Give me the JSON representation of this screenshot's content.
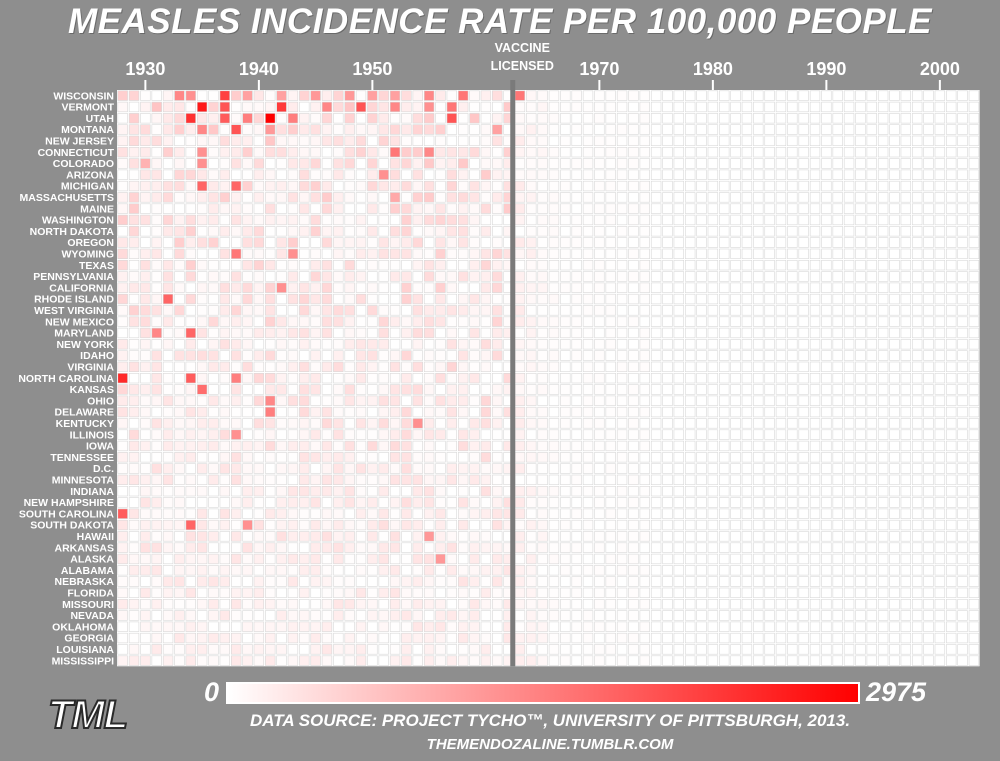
{
  "chart_data": {
    "type": "heatmap",
    "title": "MEASLES INCIDENCE RATE PER 100,000 PEOPLE",
    "x_tick_labels": [
      "1930",
      "1940",
      "1950",
      "1970",
      "1980",
      "1990",
      "2000"
    ],
    "x_ticks": [
      1930,
      1940,
      1950,
      1970,
      1980,
      1990,
      2000
    ],
    "x_range": [
      1928,
      2003
    ],
    "annotation": {
      "line1": "VACCINE",
      "line2": "LICENSED",
      "year": 1963
    },
    "states": [
      "WISCONSIN",
      "VERMONT",
      "UTAH",
      "MONTANA",
      "NEW JERSEY",
      "CONNECTICUT",
      "COLORADO",
      "ARIZONA",
      "MICHIGAN",
      "MASSACHUSETTS",
      "MAINE",
      "WASHINGTON",
      "NORTH DAKOTA",
      "OREGON",
      "WYOMING",
      "TEXAS",
      "PENNSYLVANIA",
      "CALIFORNIA",
      "RHODE ISLAND",
      "WEST VIRGINIA",
      "NEW MEXICO",
      "MARYLAND",
      "NEW YORK",
      "IDAHO",
      "VIRGINIA",
      "NORTH CAROLINA",
      "KANSAS",
      "OHIO",
      "DELAWARE",
      "KENTUCKY",
      "ILLINOIS",
      "IOWA",
      "TENNESSEE",
      "D.C.",
      "MINNESOTA",
      "INDIANA",
      "NEW HAMPSHIRE",
      "SOUTH CAROLINA",
      "SOUTH DAKOTA",
      "HAWAII",
      "ARKANSAS",
      "ALASKA",
      "ALABAMA",
      "NEBRASKA",
      "FLORIDA",
      "MISSOURI",
      "NEVADA",
      "OKLAHOMA",
      "GEORGIA",
      "LOUISIANA",
      "MISSISSIPPI"
    ],
    "color_scale": {
      "min": 0,
      "max": 2975,
      "min_label": "0",
      "max_label": "2975",
      "low_color": "#ffffff",
      "high_color": "#ff0000"
    },
    "grid": true,
    "hot_cells": [
      {
        "state": "WISCONSIN",
        "year": 1933,
        "value": 1400
      },
      {
        "state": "WISCONSIN",
        "year": 1934,
        "value": 1300
      },
      {
        "state": "WISCONSIN",
        "year": 1937,
        "value": 2200
      },
      {
        "state": "WISCONSIN",
        "year": 1939,
        "value": 1100
      },
      {
        "state": "WISCONSIN",
        "year": 1942,
        "value": 1100
      },
      {
        "state": "WISCONSIN",
        "year": 1945,
        "value": 1200
      },
      {
        "state": "WISCONSIN",
        "year": 1948,
        "value": 1200
      },
      {
        "state": "WISCONSIN",
        "year": 1950,
        "value": 1100
      },
      {
        "state": "WISCONSIN",
        "year": 1952,
        "value": 1100
      },
      {
        "state": "WISCONSIN",
        "year": 1955,
        "value": 1400
      },
      {
        "state": "WISCONSIN",
        "year": 1958,
        "value": 1600
      },
      {
        "state": "WISCONSIN",
        "year": 1963,
        "value": 1600
      },
      {
        "state": "VERMONT",
        "year": 1935,
        "value": 2700
      },
      {
        "state": "VERMONT",
        "year": 1937,
        "value": 2000
      },
      {
        "state": "VERMONT",
        "year": 1942,
        "value": 2300
      },
      {
        "state": "VERMONT",
        "year": 1946,
        "value": 1400
      },
      {
        "state": "VERMONT",
        "year": 1949,
        "value": 2000
      },
      {
        "state": "VERMONT",
        "year": 1952,
        "value": 1400
      },
      {
        "state": "VERMONT",
        "year": 1955,
        "value": 1300
      },
      {
        "state": "VERMONT",
        "year": 1957,
        "value": 1600
      },
      {
        "state": "UTAH",
        "year": 1934,
        "value": 2400
      },
      {
        "state": "UTAH",
        "year": 1937,
        "value": 1900
      },
      {
        "state": "UTAH",
        "year": 1939,
        "value": 1500
      },
      {
        "state": "UTAH",
        "year": 1941,
        "value": 2975
      },
      {
        "state": "UTAH",
        "year": 1943,
        "value": 1500
      },
      {
        "state": "UTAH",
        "year": 1957,
        "value": 2000
      },
      {
        "state": "MONTANA",
        "year": 1935,
        "value": 1400
      },
      {
        "state": "MONTANA",
        "year": 1938,
        "value": 2000
      },
      {
        "state": "MONTANA",
        "year": 1941,
        "value": 1200
      },
      {
        "state": "MONTANA",
        "year": 1961,
        "value": 1100
      },
      {
        "state": "CONNECTICUT",
        "year": 1935,
        "value": 1300
      },
      {
        "state": "CONNECTICUT",
        "year": 1952,
        "value": 1600
      },
      {
        "state": "CONNECTICUT",
        "year": 1955,
        "value": 1400
      },
      {
        "state": "COLORADO",
        "year": 1935,
        "value": 1300
      },
      {
        "state": "COLORADO",
        "year": 1930,
        "value": 900
      },
      {
        "state": "ARIZONA",
        "year": 1951,
        "value": 1300
      },
      {
        "state": "MICHIGAN",
        "year": 1935,
        "value": 1800
      },
      {
        "state": "MICHIGAN",
        "year": 1938,
        "value": 1800
      },
      {
        "state": "MASSACHUSETTS",
        "year": 1952,
        "value": 1000
      },
      {
        "state": "WYOMING",
        "year": 1938,
        "value": 1600
      },
      {
        "state": "WYOMING",
        "year": 1943,
        "value": 1300
      },
      {
        "state": "CALIFORNIA",
        "year": 1942,
        "value": 1300
      },
      {
        "state": "RHODE ISLAND",
        "year": 1932,
        "value": 1800
      },
      {
        "state": "MARYLAND",
        "year": 1931,
        "value": 1400
      },
      {
        "state": "MARYLAND",
        "year": 1934,
        "value": 1800
      },
      {
        "state": "NORTH CAROLINA",
        "year": 1928,
        "value": 2500
      },
      {
        "state": "NORTH CAROLINA",
        "year": 1934,
        "value": 1900
      },
      {
        "state": "NORTH CAROLINA",
        "year": 1938,
        "value": 1500
      },
      {
        "state": "KANSAS",
        "year": 1935,
        "value": 1700
      },
      {
        "state": "OHIO",
        "year": 1941,
        "value": 1400
      },
      {
        "state": "DELAWARE",
        "year": 1941,
        "value": 1500
      },
      {
        "state": "KENTUCKY",
        "year": 1954,
        "value": 1300
      },
      {
        "state": "ILLINOIS",
        "year": 1938,
        "value": 1300
      },
      {
        "state": "SOUTH CAROLINA",
        "year": 1928,
        "value": 1900
      },
      {
        "state": "SOUTH DAKOTA",
        "year": 1934,
        "value": 1800
      },
      {
        "state": "SOUTH DAKOTA",
        "year": 1939,
        "value": 1300
      },
      {
        "state": "HAWAII",
        "year": 1955,
        "value": 1200
      },
      {
        "state": "ALASKA",
        "year": 1956,
        "value": 1200
      }
    ],
    "background_level_prevaccine": 260,
    "background_level_postvaccine": 0
  },
  "footer": {
    "logo": "TML",
    "source": "DATA SOURCE: PROJECT TYCHO™, UNIVERSITY OF PITTSBURGH, 2013.",
    "site": "THEMENDOZALINE.TUMBLR.COM"
  }
}
